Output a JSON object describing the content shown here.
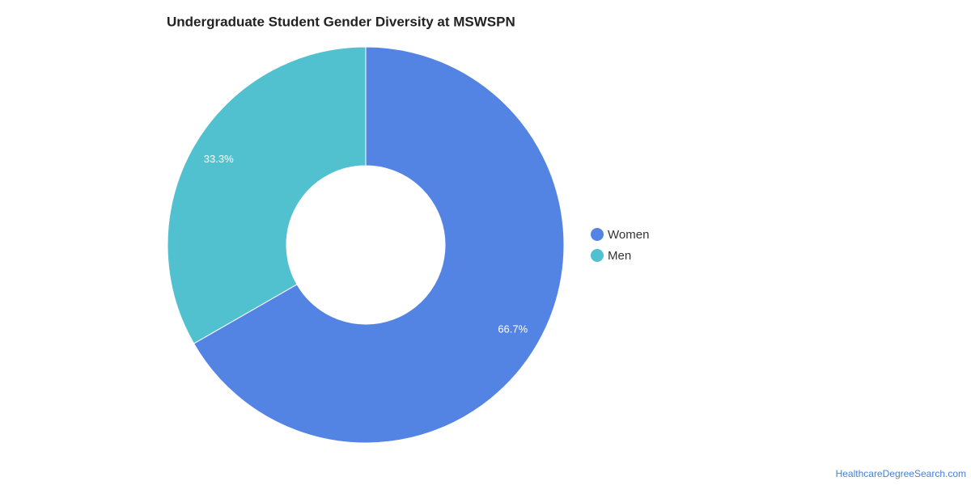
{
  "chart_data": {
    "type": "donut",
    "title": "Undergraduate Student Gender Diversity at MSWSPN",
    "categories": [
      "Women",
      "Men"
    ],
    "values": [
      66.7,
      33.3
    ],
    "value_labels": [
      "66.7%",
      "33.3%"
    ],
    "colors": [
      "#5484e3",
      "#52c1cf"
    ],
    "legend": "right"
  },
  "credit": "HealthcareDegreeSearch.com"
}
